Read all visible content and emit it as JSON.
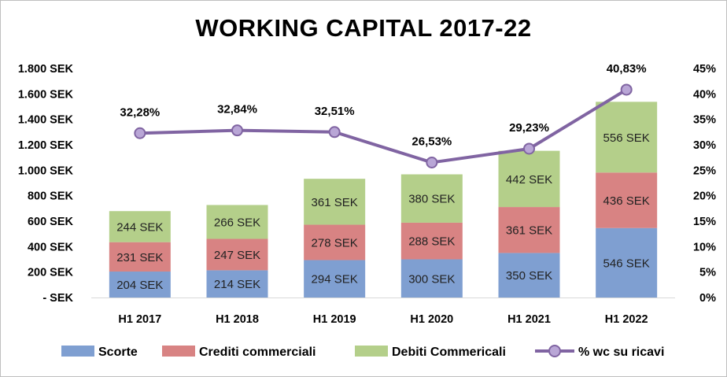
{
  "chart_data": {
    "type": "bar",
    "stacked": true,
    "title": "WORKING CAPITAL 2017-22",
    "categories": [
      "H1 2017",
      "H1 2018",
      "H1 2019",
      "H1 2020",
      "H1 2021",
      "H1 2022"
    ],
    "series": [
      {
        "name": "Scorte",
        "type": "bar",
        "axis": "left",
        "color": "#7f9fd1",
        "values": [
          204,
          214,
          294,
          300,
          350,
          546
        ],
        "labels": [
          "204 SEK",
          "214 SEK",
          "294 SEK",
          "300 SEK",
          "350 SEK",
          "546 SEK"
        ]
      },
      {
        "name": "Crediti commerciali",
        "type": "bar",
        "axis": "left",
        "color": "#d88383",
        "values": [
          231,
          247,
          278,
          288,
          361,
          436
        ],
        "labels": [
          "231 SEK",
          "247 SEK",
          "278 SEK",
          "288 SEK",
          "361 SEK",
          "436 SEK"
        ]
      },
      {
        "name": "Debiti Commericali",
        "type": "bar",
        "axis": "left",
        "color": "#b4cf8a",
        "values": [
          244,
          266,
          361,
          380,
          442,
          556
        ],
        "labels": [
          "244 SEK",
          "266 SEK",
          "361 SEK",
          "380 SEK",
          "442 SEK",
          "556 SEK"
        ]
      },
      {
        "name": "% wc su ricavi",
        "type": "line",
        "axis": "right",
        "color": "#8064a2",
        "values": [
          32.28,
          32.84,
          32.51,
          26.53,
          29.23,
          40.83
        ],
        "labels": [
          "32,28%",
          "32,84%",
          "32,51%",
          "26,53%",
          "29,23%",
          "40,83%"
        ]
      }
    ],
    "y_left": {
      "range": [
        0,
        1800
      ],
      "ticks": [
        0,
        200,
        400,
        600,
        800,
        1000,
        1200,
        1400,
        1600,
        1800
      ],
      "tick_labels": [
        "-   SEK",
        "200 SEK",
        "400 SEK",
        "600 SEK",
        "800 SEK",
        "1.000 SEK",
        "1.200 SEK",
        "1.400 SEK",
        "1.600 SEK",
        "1.800 SEK"
      ]
    },
    "y_right": {
      "range": [
        0,
        45
      ],
      "ticks": [
        0,
        5,
        10,
        15,
        20,
        25,
        30,
        35,
        40,
        45
      ],
      "tick_labels": [
        "0%",
        "5%",
        "10%",
        "15%",
        "20%",
        "25%",
        "30%",
        "35%",
        "40%",
        "45%"
      ]
    },
    "grid": false,
    "legend": "bottom"
  }
}
